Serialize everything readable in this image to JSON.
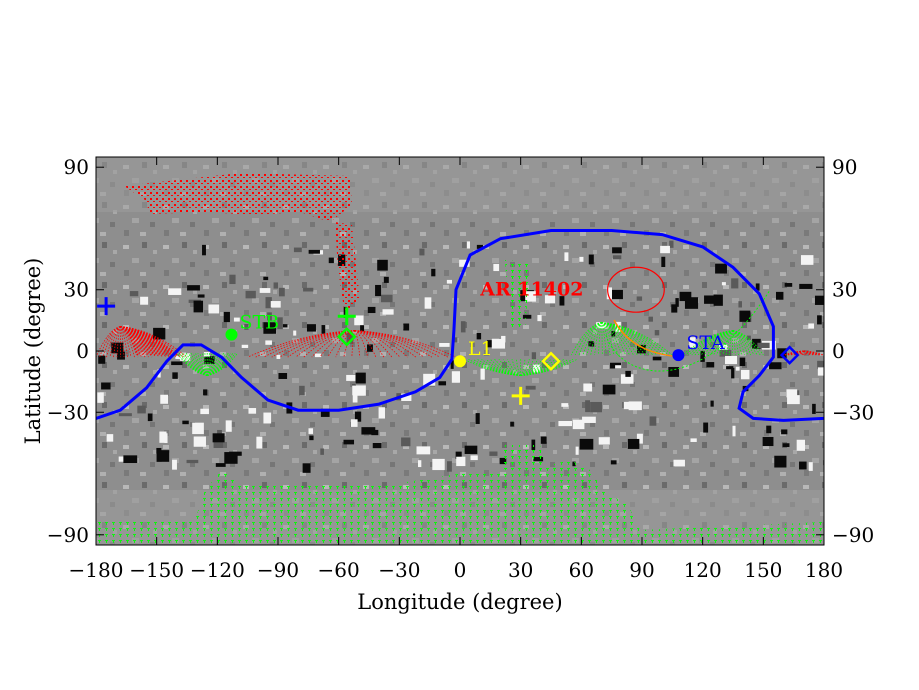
{
  "chart_data": {
    "type": "scatter",
    "title": "",
    "xlabel": "Longitude (degree)",
    "ylabel": "Latitude (degree)",
    "xlim": [
      -180,
      180
    ],
    "ylim": [
      -95,
      95
    ],
    "x_ticks": [
      -180,
      -150,
      -120,
      -90,
      -60,
      -30,
      0,
      30,
      60,
      90,
      120,
      150,
      180
    ],
    "x_tick_labels": [
      "−180",
      "−150",
      "−120",
      "−90",
      "−60",
      "−30",
      "0",
      "30",
      "60",
      "90",
      "120",
      "150",
      "180"
    ],
    "y_ticks": [
      90,
      30,
      0,
      -30,
      -90
    ],
    "y_tick_labels": [
      "90",
      "30",
      "0",
      "−30",
      "−90"
    ],
    "right_y_tick_labels": [
      "90",
      "30",
      "0",
      "−30",
      "−90"
    ],
    "background": "grayscale magnetogram (synoptic map)",
    "colors": {
      "neutral_line": "#0000ff",
      "red_field_lines": "#ff0000",
      "green_field_lines": "#00ff00",
      "l1": "#ffff00",
      "stb": "#00ff00",
      "sta": "#0000ff",
      "active_region": "#ff0000"
    },
    "markers": [
      {
        "label": "STB",
        "lon": -113,
        "lat": 8,
        "symbol": "filled-circle",
        "color": "#00ff00"
      },
      {
        "label": "L1",
        "lon": 0,
        "lat": -5,
        "symbol": "filled-circle",
        "color": "#ffff00"
      },
      {
        "label": "STA",
        "lon": 108,
        "lat": -2,
        "symbol": "filled-circle",
        "color": "#0000ff"
      },
      {
        "label": "",
        "lon": -56,
        "lat": 17,
        "symbol": "plus",
        "color": "#00ff00"
      },
      {
        "label": "",
        "lon": -56,
        "lat": 7,
        "symbol": "diamond",
        "color": "#00ff00"
      },
      {
        "label": "",
        "lon": 30,
        "lat": -22,
        "symbol": "plus",
        "color": "#ffff00"
      },
      {
        "label": "",
        "lon": 45,
        "lat": -5,
        "symbol": "diamond",
        "color": "#ffff00"
      },
      {
        "label": "",
        "lon": 163,
        "lat": -2,
        "symbol": "diamond",
        "color": "#0000ff"
      },
      {
        "label": "",
        "lon": -175,
        "lat": 22,
        "symbol": "plus",
        "color": "#0000ff"
      }
    ],
    "annotations": [
      {
        "text": "AR 11402",
        "lon": 10,
        "lat": 30,
        "color": "#ff0000"
      }
    ],
    "active_region_ellipse": {
      "lon": 87,
      "lat": 30,
      "rx_deg": 14,
      "ry_deg": 11,
      "color": "#ff0000"
    },
    "neutral_line": {
      "name": "",
      "points": [
        [
          -180,
          -33
        ],
        [
          -168,
          -29
        ],
        [
          -155,
          -18
        ],
        [
          -145,
          -5
        ],
        [
          -137,
          3
        ],
        [
          -128,
          3
        ],
        [
          -118,
          -3
        ],
        [
          -108,
          -13
        ],
        [
          -95,
          -24
        ],
        [
          -80,
          -29
        ],
        [
          -60,
          -29
        ],
        [
          -40,
          -26
        ],
        [
          -22,
          -20
        ],
        [
          -10,
          -13
        ],
        [
          -4,
          -4
        ],
        [
          -3,
          10
        ],
        [
          -2,
          30
        ],
        [
          5,
          47
        ],
        [
          20,
          55
        ],
        [
          45,
          59
        ],
        [
          75,
          59
        ],
        [
          100,
          57
        ],
        [
          120,
          51
        ],
        [
          135,
          41
        ],
        [
          148,
          28
        ],
        [
          155,
          12
        ],
        [
          155,
          -3
        ],
        [
          148,
          -12
        ],
        [
          140,
          -20
        ],
        [
          138,
          -28
        ],
        [
          145,
          -33
        ],
        [
          160,
          -34
        ],
        [
          180,
          -33
        ]
      ]
    }
  }
}
